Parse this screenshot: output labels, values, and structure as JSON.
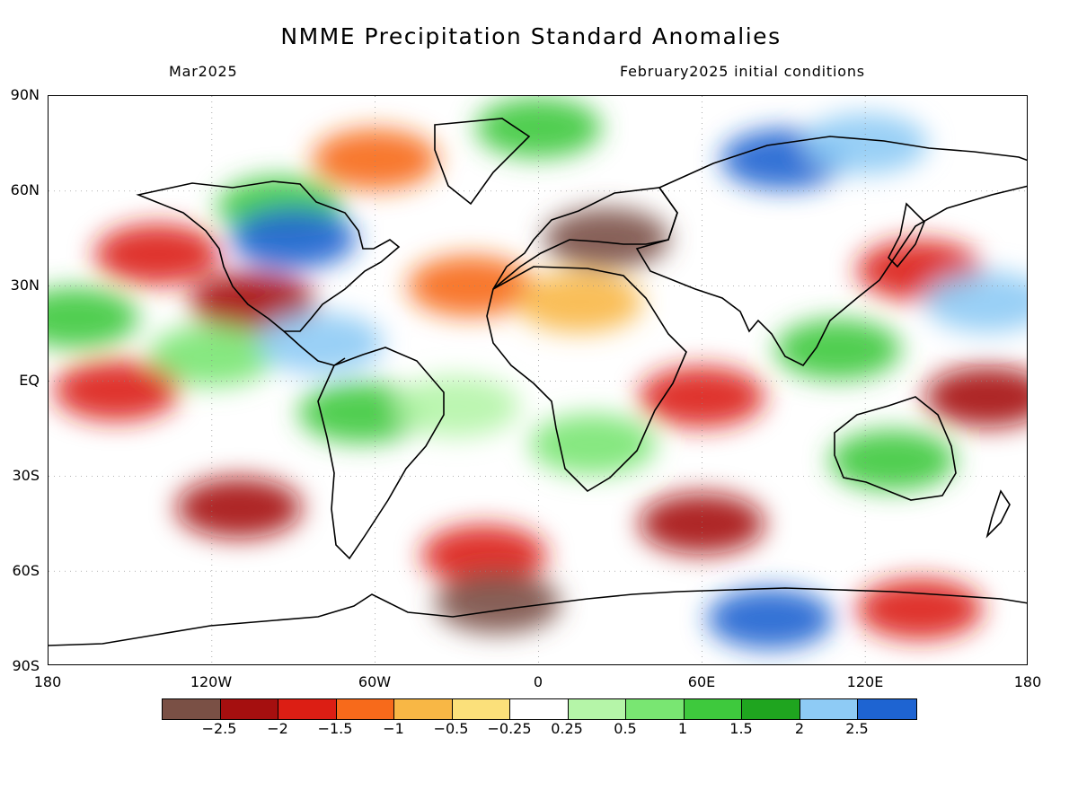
{
  "header": {
    "title": "NMME Precipitation Standard Anomalies",
    "target_month": "Mar2025",
    "initial_conditions": "February2025 initial conditions"
  },
  "axes": {
    "lat_labels": [
      "90N",
      "60N",
      "30N",
      "EQ",
      "30S",
      "60S",
      "90S"
    ],
    "lat_values": [
      90,
      60,
      30,
      0,
      -30,
      -60,
      -90
    ],
    "lon_labels": [
      "180",
      "120W",
      "60W",
      "0",
      "60E",
      "120E",
      "180"
    ],
    "lon_values": [
      -180,
      -120,
      -60,
      0,
      60,
      120,
      180
    ]
  },
  "legend": {
    "colors": [
      "#7a5045",
      "#a50f0f",
      "#dc1e14",
      "#f76a1b",
      "#f8b745",
      "#fbe07a",
      "#ffffff",
      "#b5f5a8",
      "#79e672",
      "#3ec93d",
      "#1fa51f",
      "#8ecbf5",
      "#1e64d2"
    ],
    "labels": [
      "−2.5",
      "−2",
      "−1.5",
      "−1",
      "−0.5",
      "−0.25",
      "0.25",
      "0.5",
      "1",
      "1.5",
      "2",
      "2.5"
    ]
  },
  "map_anomalies": [
    {
      "lon": -140,
      "lat": 40,
      "value": -1.5
    },
    {
      "lon": -105,
      "lat": 25,
      "value": -2
    },
    {
      "lon": -170,
      "lat": 20,
      "value": 1
    },
    {
      "lon": -120,
      "lat": 8,
      "value": 0.5
    },
    {
      "lon": -155,
      "lat": -3,
      "value": -1.5
    },
    {
      "lon": -110,
      "lat": -40,
      "value": -2
    },
    {
      "lon": -95,
      "lat": 55,
      "value": 1
    },
    {
      "lon": -90,
      "lat": 45,
      "value": 2.5
    },
    {
      "lon": -80,
      "lat": 12,
      "value": 2
    },
    {
      "lon": -65,
      "lat": -10,
      "value": 1
    },
    {
      "lon": -25,
      "lat": 30,
      "value": -1
    },
    {
      "lon": -30,
      "lat": -8,
      "value": 0.25
    },
    {
      "lon": -20,
      "lat": -55,
      "value": -1.5
    },
    {
      "lon": -15,
      "lat": -70,
      "value": -2.5
    },
    {
      "lon": 25,
      "lat": 45,
      "value": -2.5
    },
    {
      "lon": 15,
      "lat": 25,
      "value": -0.5
    },
    {
      "lon": 20,
      "lat": -20,
      "value": 0.5
    },
    {
      "lon": 60,
      "lat": -5,
      "value": -1.5
    },
    {
      "lon": 60,
      "lat": -45,
      "value": -2
    },
    {
      "lon": 85,
      "lat": -75,
      "value": 2.5
    },
    {
      "lon": 90,
      "lat": 70,
      "value": 2.5
    },
    {
      "lon": 120,
      "lat": 75,
      "value": 2
    },
    {
      "lon": 140,
      "lat": 35,
      "value": -1.5
    },
    {
      "lon": 165,
      "lat": 25,
      "value": 2
    },
    {
      "lon": 165,
      "lat": -5,
      "value": -2
    },
    {
      "lon": 130,
      "lat": -25,
      "value": 1
    },
    {
      "lon": 140,
      "lat": -72,
      "value": -1.5
    },
    {
      "lon": 0,
      "lat": 80,
      "value": 1
    },
    {
      "lon": -60,
      "lat": 70,
      "value": -1
    },
    {
      "lon": 110,
      "lat": 10,
      "value": 1
    }
  ]
}
